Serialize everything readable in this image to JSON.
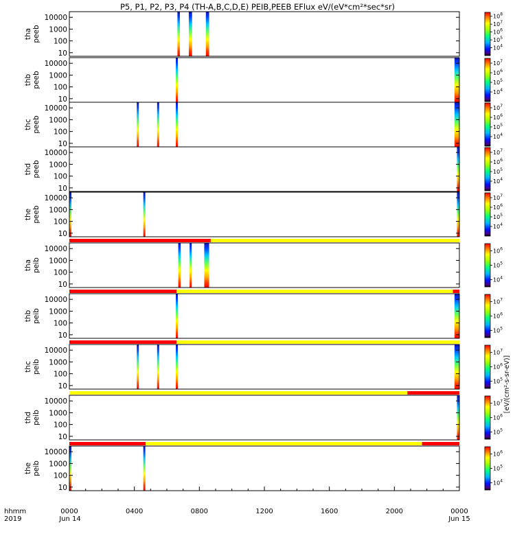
{
  "chart_data": {
    "type": "heatmap",
    "title": "P5, P1, P2, P3, P4 (TH-A,B,C,D,E) PEIB,PEEB EFlux eV/(eV*cm²*sec*sr)",
    "colorbar_label": "[eV/(cm²-s-sr-eV)]",
    "xlim_hours": [
      0,
      24
    ],
    "x_tick_labels": [
      "0000",
      "0400",
      "0800",
      "1200",
      "1600",
      "2000",
      "0000"
    ],
    "x_corner_labels": [
      "hhmm",
      "2019"
    ],
    "x_date_labels": [
      "Jun 14",
      "Jun 15"
    ],
    "y_tick_labels": [
      "10000",
      "1000",
      "100",
      "10"
    ],
    "y_scale": "log",
    "ylim_eV": [
      5,
      30000
    ],
    "panels": [
      {
        "label": [
          "tha",
          "peeb"
        ],
        "cbar_ticks": [
          4,
          5,
          6,
          7,
          8
        ],
        "cbar_range": [
          3,
          8.5
        ],
        "bursts": [
          {
            "start_hours": 6.65,
            "end_hours": 6.8
          },
          {
            "start_hours": 7.35,
            "end_hours": 7.55
          },
          {
            "start_hours": 8.4,
            "end_hours": 8.6
          }
        ]
      },
      {
        "label": [
          "thb",
          "peeb"
        ],
        "cbar_ticks": [
          4,
          5,
          6,
          7
        ],
        "cbar_range": [
          3,
          7.5
        ],
        "bursts": [
          {
            "start_hours": 6.55,
            "end_hours": 6.65
          },
          {
            "start_hours": 23.7,
            "end_hours": 24.0
          }
        ]
      },
      {
        "label": [
          "thc",
          "peeb"
        ],
        "cbar_ticks": [
          4,
          5,
          6,
          7
        ],
        "cbar_range": [
          3,
          7.5
        ],
        "bursts": [
          {
            "start_hours": 4.15,
            "end_hours": 4.25
          },
          {
            "start_hours": 5.4,
            "end_hours": 5.5
          },
          {
            "start_hours": 6.55,
            "end_hours": 6.65
          },
          {
            "start_hours": 23.7,
            "end_hours": 24.0
          }
        ]
      },
      {
        "label": [
          "thd",
          "peeb"
        ],
        "cbar_ticks": [
          4,
          5,
          6,
          7
        ],
        "cbar_range": [
          3,
          7.5
        ],
        "bursts": [
          {
            "start_hours": 23.85,
            "end_hours": 24.0
          }
        ]
      },
      {
        "label": [
          "the",
          "peeb"
        ],
        "cbar_ticks": [
          4,
          5,
          6,
          7
        ],
        "cbar_range": [
          3,
          7.5
        ],
        "bursts": [
          {
            "start_hours": 0.0,
            "end_hours": 0.08
          },
          {
            "start_hours": 4.55,
            "end_hours": 4.65
          },
          {
            "start_hours": 23.85,
            "end_hours": 24.0
          }
        ]
      },
      {
        "label": [
          "tha",
          "peib"
        ],
        "cbar_ticks": [
          4,
          5,
          6
        ],
        "cbar_range": [
          3.5,
          6.5
        ],
        "mode_bar": [
          {
            "start_hours": 0.0,
            "end_hours": 6.55,
            "color": "#ff0000"
          },
          {
            "start_hours": 6.55,
            "end_hours": 8.7,
            "color": "#ff0000"
          },
          {
            "start_hours": 8.7,
            "end_hours": 24.0,
            "color": "#ffff00"
          }
        ],
        "bursts": [
          {
            "start_hours": 6.7,
            "end_hours": 6.85
          },
          {
            "start_hours": 7.4,
            "end_hours": 7.5
          },
          {
            "start_hours": 8.3,
            "end_hours": 8.6
          }
        ]
      },
      {
        "label": [
          "thb",
          "peib"
        ],
        "cbar_ticks": [
          5,
          6,
          7
        ],
        "cbar_range": [
          4.5,
          7.5
        ],
        "mode_bar": [
          {
            "start_hours": 0.0,
            "end_hours": 6.6,
            "color": "#ff0000"
          },
          {
            "start_hours": 6.6,
            "end_hours": 23.6,
            "color": "#ffff00"
          },
          {
            "start_hours": 23.6,
            "end_hours": 24.0,
            "color": "#ff0000"
          }
        ],
        "bursts": [
          {
            "start_hours": 6.55,
            "end_hours": 6.65
          },
          {
            "start_hours": 23.7,
            "end_hours": 24.0
          }
        ]
      },
      {
        "label": [
          "thc",
          "peib"
        ],
        "cbar_ticks": [
          5,
          6,
          7
        ],
        "cbar_range": [
          4.5,
          7.5
        ],
        "mode_bar": [
          {
            "start_hours": 0.0,
            "end_hours": 6.6,
            "color": "#ff0000"
          },
          {
            "start_hours": 6.6,
            "end_hours": 24.0,
            "color": "#ffff00"
          }
        ],
        "bursts": [
          {
            "start_hours": 4.15,
            "end_hours": 4.25
          },
          {
            "start_hours": 5.4,
            "end_hours": 5.5
          },
          {
            "start_hours": 6.55,
            "end_hours": 6.65
          },
          {
            "start_hours": 23.7,
            "end_hours": 24.0
          }
        ]
      },
      {
        "label": [
          "thd",
          "peib"
        ],
        "cbar_ticks": [
          5,
          6,
          7
        ],
        "cbar_range": [
          4.5,
          7.5
        ],
        "mode_bar": [
          {
            "start_hours": 0.0,
            "end_hours": 20.8,
            "color": "#ffff00"
          },
          {
            "start_hours": 20.8,
            "end_hours": 24.0,
            "color": "#ff0000"
          }
        ],
        "bursts": [
          {
            "start_hours": 23.85,
            "end_hours": 24.0
          }
        ]
      },
      {
        "label": [
          "the",
          "peib"
        ],
        "cbar_ticks": [
          4,
          5,
          6
        ],
        "cbar_range": [
          3.5,
          6.5
        ],
        "mode_bar": [
          {
            "start_hours": 0.0,
            "end_hours": 4.7,
            "color": "#ff0000"
          },
          {
            "start_hours": 4.7,
            "end_hours": 21.7,
            "color": "#ffff00"
          },
          {
            "start_hours": 21.7,
            "end_hours": 24.0,
            "color": "#ff0000"
          }
        ],
        "bursts": [
          {
            "start_hours": 0.0,
            "end_hours": 0.06
          },
          {
            "start_hours": 4.55,
            "end_hours": 4.65
          }
        ]
      }
    ]
  }
}
